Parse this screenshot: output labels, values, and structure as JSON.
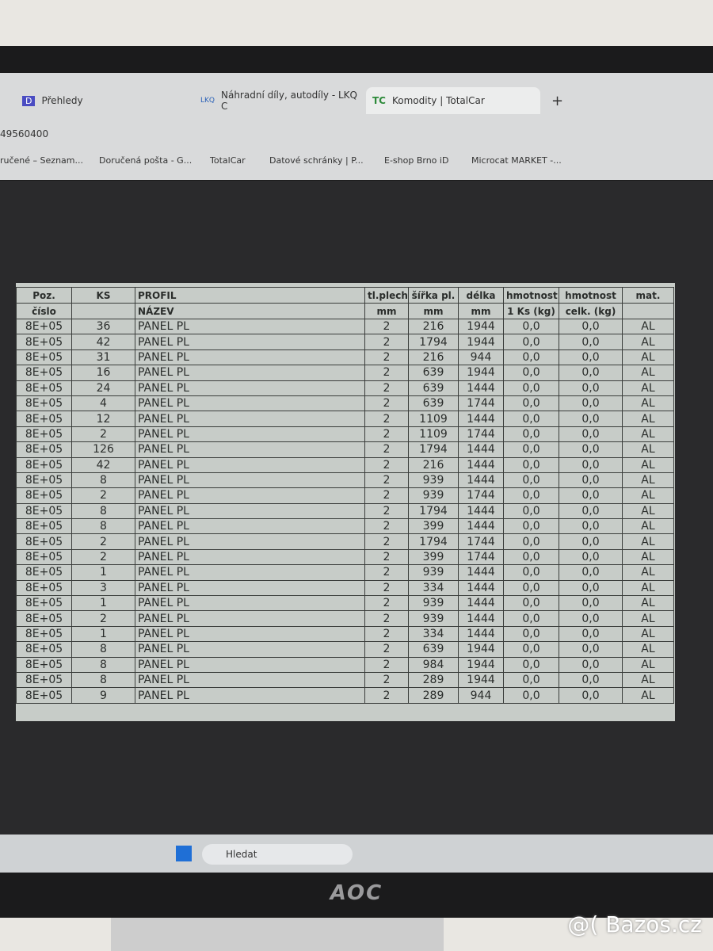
{
  "browser": {
    "tabs": [
      "Přehledy",
      "Náhradní díly, autodíly - LKQ C",
      "Komodity | TotalCar"
    ],
    "address": "49560400",
    "bookmarks": [
      "ručené – Seznam...",
      "Doručená pošta - G...",
      "TotalCar",
      "Datové schránky | P...",
      "E-shop Brno iD",
      "Microcat MARKET -..."
    ]
  },
  "table": {
    "columns": [
      {
        "top": "Poz.",
        "bottom": "číslo"
      },
      {
        "top": "KS"
      },
      {
        "top": "PROFIL",
        "bottom": "NÁZEV"
      },
      {
        "top": "tl.plechu",
        "bottom": "mm"
      },
      {
        "top": "šířka pl.",
        "bottom": "mm"
      },
      {
        "top": "délka",
        "bottom": "mm"
      },
      {
        "top": "hmotnost",
        "bottom": "1 Ks (kg)"
      },
      {
        "top": "hmotnost",
        "bottom": "celk. (kg)"
      },
      {
        "top": "mat."
      }
    ],
    "rows": [
      [
        "8E+05",
        "36",
        "PANEL PL",
        "2",
        "216",
        "1944",
        "0,0",
        "0,0",
        "AL"
      ],
      [
        "8E+05",
        "42",
        "PANEL PL",
        "2",
        "1794",
        "1944",
        "0,0",
        "0,0",
        "AL"
      ],
      [
        "8E+05",
        "31",
        "PANEL PL",
        "2",
        "216",
        "944",
        "0,0",
        "0,0",
        "AL"
      ],
      [
        "8E+05",
        "16",
        "PANEL PL",
        "2",
        "639",
        "1944",
        "0,0",
        "0,0",
        "AL"
      ],
      [
        "8E+05",
        "24",
        "PANEL PL",
        "2",
        "639",
        "1444",
        "0,0",
        "0,0",
        "AL"
      ],
      [
        "8E+05",
        "4",
        "PANEL PL",
        "2",
        "639",
        "1744",
        "0,0",
        "0,0",
        "AL"
      ],
      [
        "8E+05",
        "12",
        "PANEL PL",
        "2",
        "1109",
        "1444",
        "0,0",
        "0,0",
        "AL"
      ],
      [
        "8E+05",
        "2",
        "PANEL PL",
        "2",
        "1109",
        "1744",
        "0,0",
        "0,0",
        "AL"
      ],
      [
        "8E+05",
        "126",
        "PANEL PL",
        "2",
        "1794",
        "1444",
        "0,0",
        "0,0",
        "AL"
      ],
      [
        "8E+05",
        "42",
        "PANEL PL",
        "2",
        "216",
        "1444",
        "0,0",
        "0,0",
        "AL"
      ],
      [
        "8E+05",
        "8",
        "PANEL PL",
        "2",
        "939",
        "1444",
        "0,0",
        "0,0",
        "AL"
      ],
      [
        "8E+05",
        "2",
        "PANEL PL",
        "2",
        "939",
        "1744",
        "0,0",
        "0,0",
        "AL"
      ],
      [
        "8E+05",
        "8",
        "PANEL PL",
        "2",
        "1794",
        "1444",
        "0,0",
        "0,0",
        "AL"
      ],
      [
        "8E+05",
        "8",
        "PANEL PL",
        "2",
        "399",
        "1444",
        "0,0",
        "0,0",
        "AL"
      ],
      [
        "8E+05",
        "2",
        "PANEL PL",
        "2",
        "1794",
        "1744",
        "0,0",
        "0,0",
        "AL"
      ],
      [
        "8E+05",
        "2",
        "PANEL PL",
        "2",
        "399",
        "1744",
        "0,0",
        "0,0",
        "AL"
      ],
      [
        "8E+05",
        "1",
        "PANEL PL",
        "2",
        "939",
        "1444",
        "0,0",
        "0,0",
        "AL"
      ],
      [
        "8E+05",
        "3",
        "PANEL PL",
        "2",
        "334",
        "1444",
        "0,0",
        "0,0",
        "AL"
      ],
      [
        "8E+05",
        "1",
        "PANEL PL",
        "2",
        "939",
        "1444",
        "0,0",
        "0,0",
        "AL"
      ],
      [
        "8E+05",
        "2",
        "PANEL PL",
        "2",
        "939",
        "1444",
        "0,0",
        "0,0",
        "AL"
      ],
      [
        "8E+05",
        "1",
        "PANEL PL",
        "2",
        "334",
        "1444",
        "0,0",
        "0,0",
        "AL"
      ],
      [
        "8E+05",
        "8",
        "PANEL PL",
        "2",
        "639",
        "1944",
        "0,0",
        "0,0",
        "AL"
      ],
      [
        "8E+05",
        "8",
        "PANEL PL",
        "2",
        "984",
        "1944",
        "0,0",
        "0,0",
        "AL"
      ],
      [
        "8E+05",
        "8",
        "PANEL PL",
        "2",
        "289",
        "1944",
        "0,0",
        "0,0",
        "AL"
      ],
      [
        "8E+05",
        "9",
        "PANEL PL",
        "2",
        "289",
        "944",
        "0,0",
        "0,0",
        "AL"
      ]
    ]
  },
  "taskbar": {
    "search": "Hledat"
  },
  "monitor": {
    "brand": "AOC"
  },
  "watermark": "@( Bazos.cz"
}
